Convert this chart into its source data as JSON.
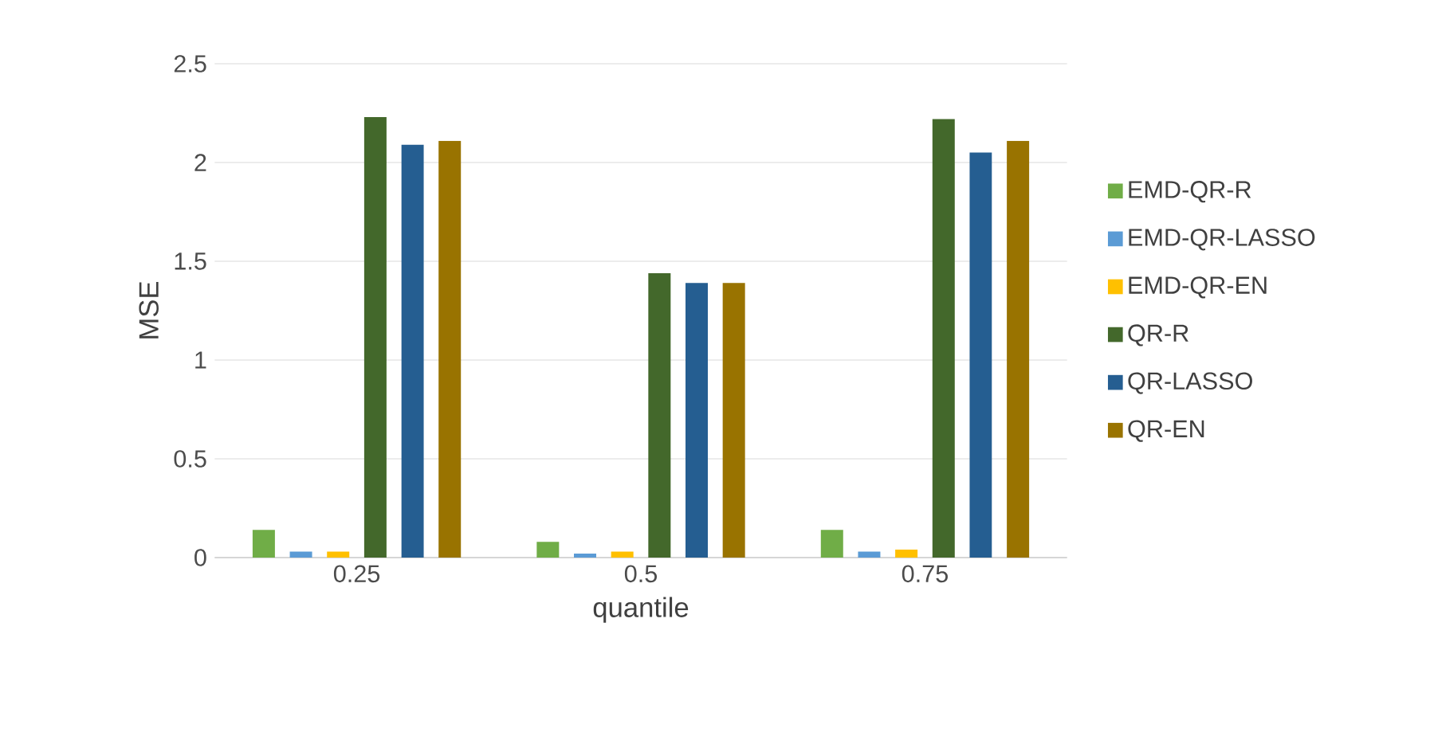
{
  "chart_data": {
    "type": "bar",
    "xlabel": "quantile",
    "ylabel": "MSE",
    "categories": [
      "0.25",
      "0.5",
      "0.75"
    ],
    "series": [
      {
        "name": "EMD-QR-R",
        "color": "#70ad47",
        "values": [
          0.14,
          0.08,
          0.14
        ]
      },
      {
        "name": "EMD-QR-LASSO",
        "color": "#5b9bd5",
        "values": [
          0.03,
          0.02,
          0.03
        ]
      },
      {
        "name": "EMD-QR-EN",
        "color": "#ffc000",
        "values": [
          0.03,
          0.03,
          0.04
        ]
      },
      {
        "name": "QR-R",
        "color": "#43682b",
        "values": [
          2.23,
          1.44,
          2.22
        ]
      },
      {
        "name": "QR-LASSO",
        "color": "#255e91",
        "values": [
          2.09,
          1.39,
          2.05
        ]
      },
      {
        "name": "QR-EN",
        "color": "#997300",
        "values": [
          2.11,
          1.39,
          2.11
        ]
      }
    ],
    "ylim": [
      0,
      2.5
    ],
    "yticks": [
      0,
      0.5,
      1,
      1.5,
      2,
      2.5
    ],
    "grid": "y",
    "legend": "right"
  }
}
